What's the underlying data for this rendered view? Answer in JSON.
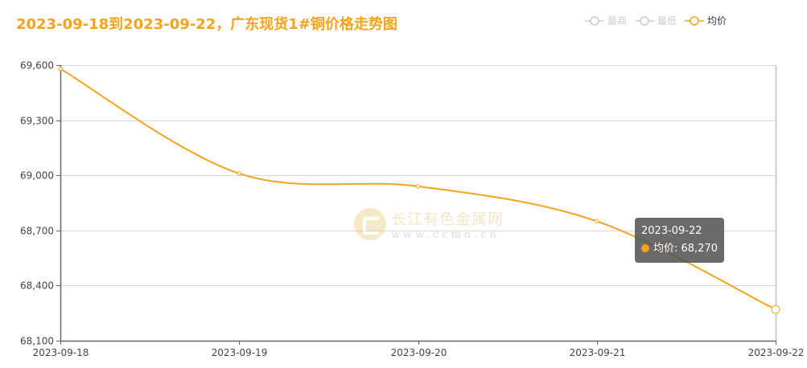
{
  "title": "2023-09-18到2023-09-22，广东现货1#铜价格走势图",
  "legend": [
    {
      "label": "最高",
      "active": false,
      "color": "#cccccc"
    },
    {
      "label": "最低",
      "active": false,
      "color": "#cccccc"
    },
    {
      "label": "均价",
      "active": true,
      "color": "#f7a21b"
    }
  ],
  "tooltip": {
    "date": "2023-09-22",
    "series": "均价",
    "value_text": "68,270",
    "line": "均价: 68,270"
  },
  "watermark": {
    "name": "长江有色金属网",
    "url": "www.ccmn.cn"
  },
  "colors": {
    "accent": "#f7a21b",
    "grid": "#d9d9d9",
    "axis": "#666666",
    "tooltip_bg": "#505050"
  },
  "chart_data": {
    "type": "line",
    "title": "2023-09-18到2023-09-22，广东现货1#铜价格走势图",
    "xlabel": "",
    "ylabel": "",
    "categories": [
      "2023-09-18",
      "2023-09-19",
      "2023-09-20",
      "2023-09-21",
      "2023-09-22"
    ],
    "series": [
      {
        "name": "最高",
        "values": [],
        "visible": false
      },
      {
        "name": "最低",
        "values": [],
        "visible": false
      },
      {
        "name": "均价",
        "values": [
          69580,
          69010,
          68940,
          68750,
          68270
        ],
        "visible": true,
        "smooth": true
      }
    ],
    "ylim": [
      68100,
      69600
    ],
    "yticks": [
      68100,
      68400,
      68700,
      69000,
      69300,
      69600
    ],
    "ytick_labels": [
      "68,100",
      "68,400",
      "68,700",
      "69,000",
      "69,300",
      "69,600"
    ],
    "grid": true,
    "legend_position": "top-right"
  }
}
